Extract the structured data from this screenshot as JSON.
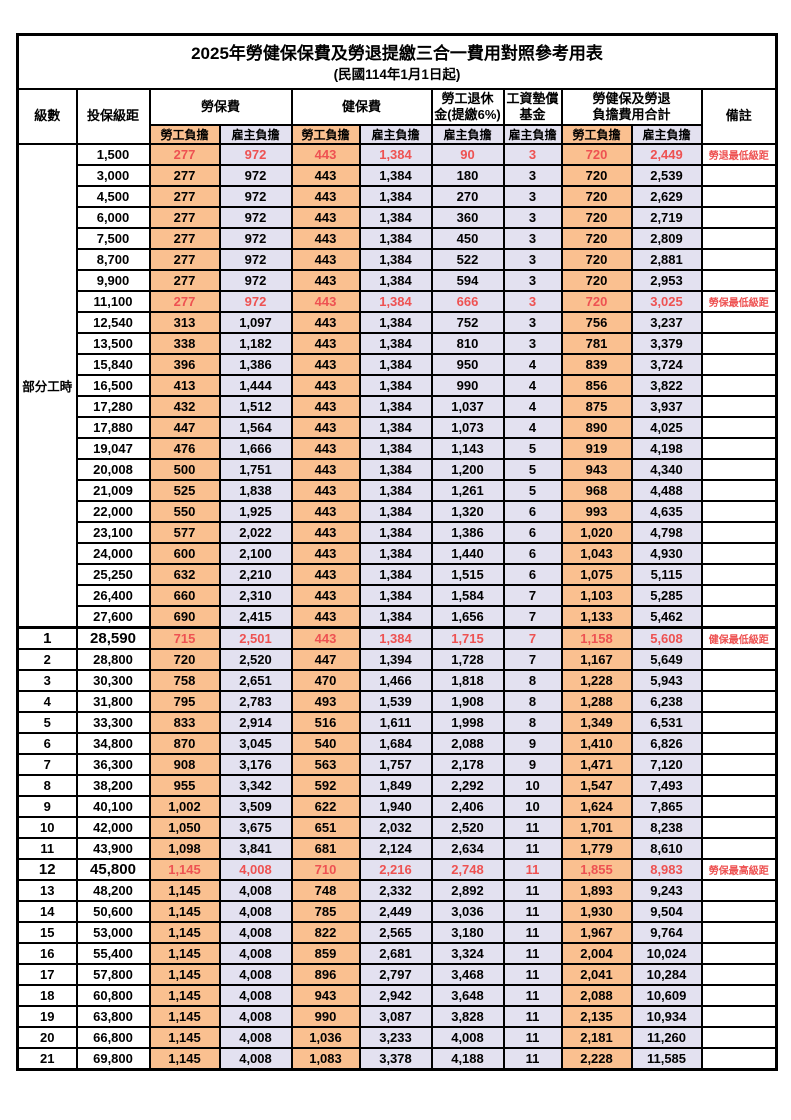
{
  "title": "2025年勞健保保費及勞退提繳三合一費用對照參考用表",
  "subtitle": "(民國114年1月1日起)",
  "header": {
    "level": "級數",
    "bracket": "投保級距",
    "labor_ins": "勞保費",
    "health_ins": "健保費",
    "pension_line1": "勞工退休",
    "pension_line2": "金(提繳6%)",
    "wage_fund_line1": "工資墊償",
    "wage_fund_line2": "基金",
    "total_line1": "勞健保及勞退",
    "total_line2": "負擔費用合計",
    "note": "備註",
    "employee": "勞工負擔",
    "employer": "雇主負擔"
  },
  "part_time_label": "部分工時",
  "part_time_row_count": 23,
  "colors": {
    "employee_bg": "#FAC090",
    "employer_bg": "#E3E1F0",
    "highlight_red": "#EE5252"
  },
  "rows": [
    {
      "br": "1,500",
      "a": "277",
      "b": "972",
      "c": "443",
      "d": "1,384",
      "e": "90",
      "f": "3",
      "g": "720",
      "h": "2,449",
      "note": "勞退最低級距",
      "hl": true
    },
    {
      "br": "3,000",
      "a": "277",
      "b": "972",
      "c": "443",
      "d": "1,384",
      "e": "180",
      "f": "3",
      "g": "720",
      "h": "2,539",
      "note": ""
    },
    {
      "br": "4,500",
      "a": "277",
      "b": "972",
      "c": "443",
      "d": "1,384",
      "e": "270",
      "f": "3",
      "g": "720",
      "h": "2,629",
      "note": ""
    },
    {
      "br": "6,000",
      "a": "277",
      "b": "972",
      "c": "443",
      "d": "1,384",
      "e": "360",
      "f": "3",
      "g": "720",
      "h": "2,719",
      "note": ""
    },
    {
      "br": "7,500",
      "a": "277",
      "b": "972",
      "c": "443",
      "d": "1,384",
      "e": "450",
      "f": "3",
      "g": "720",
      "h": "2,809",
      "note": ""
    },
    {
      "br": "8,700",
      "a": "277",
      "b": "972",
      "c": "443",
      "d": "1,384",
      "e": "522",
      "f": "3",
      "g": "720",
      "h": "2,881",
      "note": ""
    },
    {
      "br": "9,900",
      "a": "277",
      "b": "972",
      "c": "443",
      "d": "1,384",
      "e": "594",
      "f": "3",
      "g": "720",
      "h": "2,953",
      "note": ""
    },
    {
      "br": "11,100",
      "a": "277",
      "b": "972",
      "c": "443",
      "d": "1,384",
      "e": "666",
      "f": "3",
      "g": "720",
      "h": "3,025",
      "note": "勞保最低級距",
      "hl": true
    },
    {
      "br": "12,540",
      "a": "313",
      "b": "1,097",
      "c": "443",
      "d": "1,384",
      "e": "752",
      "f": "3",
      "g": "756",
      "h": "3,237",
      "note": ""
    },
    {
      "br": "13,500",
      "a": "338",
      "b": "1,182",
      "c": "443",
      "d": "1,384",
      "e": "810",
      "f": "3",
      "g": "781",
      "h": "3,379",
      "note": ""
    },
    {
      "br": "15,840",
      "a": "396",
      "b": "1,386",
      "c": "443",
      "d": "1,384",
      "e": "950",
      "f": "4",
      "g": "839",
      "h": "3,724",
      "note": ""
    },
    {
      "br": "16,500",
      "a": "413",
      "b": "1,444",
      "c": "443",
      "d": "1,384",
      "e": "990",
      "f": "4",
      "g": "856",
      "h": "3,822",
      "note": ""
    },
    {
      "br": "17,280",
      "a": "432",
      "b": "1,512",
      "c": "443",
      "d": "1,384",
      "e": "1,037",
      "f": "4",
      "g": "875",
      "h": "3,937",
      "note": ""
    },
    {
      "br": "17,880",
      "a": "447",
      "b": "1,564",
      "c": "443",
      "d": "1,384",
      "e": "1,073",
      "f": "4",
      "g": "890",
      "h": "4,025",
      "note": ""
    },
    {
      "br": "19,047",
      "a": "476",
      "b": "1,666",
      "c": "443",
      "d": "1,384",
      "e": "1,143",
      "f": "5",
      "g": "919",
      "h": "4,198",
      "note": ""
    },
    {
      "br": "20,008",
      "a": "500",
      "b": "1,751",
      "c": "443",
      "d": "1,384",
      "e": "1,200",
      "f": "5",
      "g": "943",
      "h": "4,340",
      "note": ""
    },
    {
      "br": "21,009",
      "a": "525",
      "b": "1,838",
      "c": "443",
      "d": "1,384",
      "e": "1,261",
      "f": "5",
      "g": "968",
      "h": "4,488",
      "note": ""
    },
    {
      "br": "22,000",
      "a": "550",
      "b": "1,925",
      "c": "443",
      "d": "1,384",
      "e": "1,320",
      "f": "6",
      "g": "993",
      "h": "4,635",
      "note": ""
    },
    {
      "br": "23,100",
      "a": "577",
      "b": "2,022",
      "c": "443",
      "d": "1,384",
      "e": "1,386",
      "f": "6",
      "g": "1,020",
      "h": "4,798",
      "note": ""
    },
    {
      "br": "24,000",
      "a": "600",
      "b": "2,100",
      "c": "443",
      "d": "1,384",
      "e": "1,440",
      "f": "6",
      "g": "1,043",
      "h": "4,930",
      "note": ""
    },
    {
      "br": "25,250",
      "a": "632",
      "b": "2,210",
      "c": "443",
      "d": "1,384",
      "e": "1,515",
      "f": "6",
      "g": "1,075",
      "h": "5,115",
      "note": ""
    },
    {
      "br": "26,400",
      "a": "660",
      "b": "2,310",
      "c": "443",
      "d": "1,384",
      "e": "1,584",
      "f": "7",
      "g": "1,103",
      "h": "5,285",
      "note": ""
    },
    {
      "br": "27,600",
      "a": "690",
      "b": "2,415",
      "c": "443",
      "d": "1,384",
      "e": "1,656",
      "f": "7",
      "g": "1,133",
      "h": "5,462",
      "note": ""
    },
    {
      "lv": "1",
      "br": "28,590",
      "a": "715",
      "b": "2,501",
      "c": "443",
      "d": "1,384",
      "e": "1,715",
      "f": "7",
      "g": "1,158",
      "h": "5,608",
      "note": "健保最低級距",
      "hl": true,
      "emph": true
    },
    {
      "lv": "2",
      "br": "28,800",
      "a": "720",
      "b": "2,520",
      "c": "447",
      "d": "1,394",
      "e": "1,728",
      "f": "7",
      "g": "1,167",
      "h": "5,649",
      "note": ""
    },
    {
      "lv": "3",
      "br": "30,300",
      "a": "758",
      "b": "2,651",
      "c": "470",
      "d": "1,466",
      "e": "1,818",
      "f": "8",
      "g": "1,228",
      "h": "5,943",
      "note": ""
    },
    {
      "lv": "4",
      "br": "31,800",
      "a": "795",
      "b": "2,783",
      "c": "493",
      "d": "1,539",
      "e": "1,908",
      "f": "8",
      "g": "1,288",
      "h": "6,238",
      "note": ""
    },
    {
      "lv": "5",
      "br": "33,300",
      "a": "833",
      "b": "2,914",
      "c": "516",
      "d": "1,611",
      "e": "1,998",
      "f": "8",
      "g": "1,349",
      "h": "6,531",
      "note": ""
    },
    {
      "lv": "6",
      "br": "34,800",
      "a": "870",
      "b": "3,045",
      "c": "540",
      "d": "1,684",
      "e": "2,088",
      "f": "9",
      "g": "1,410",
      "h": "6,826",
      "note": ""
    },
    {
      "lv": "7",
      "br": "36,300",
      "a": "908",
      "b": "3,176",
      "c": "563",
      "d": "1,757",
      "e": "2,178",
      "f": "9",
      "g": "1,471",
      "h": "7,120",
      "note": ""
    },
    {
      "lv": "8",
      "br": "38,200",
      "a": "955",
      "b": "3,342",
      "c": "592",
      "d": "1,849",
      "e": "2,292",
      "f": "10",
      "g": "1,547",
      "h": "7,493",
      "note": ""
    },
    {
      "lv": "9",
      "br": "40,100",
      "a": "1,002",
      "b": "3,509",
      "c": "622",
      "d": "1,940",
      "e": "2,406",
      "f": "10",
      "g": "1,624",
      "h": "7,865",
      "note": ""
    },
    {
      "lv": "10",
      "br": "42,000",
      "a": "1,050",
      "b": "3,675",
      "c": "651",
      "d": "2,032",
      "e": "2,520",
      "f": "11",
      "g": "1,701",
      "h": "8,238",
      "note": ""
    },
    {
      "lv": "11",
      "br": "43,900",
      "a": "1,098",
      "b": "3,841",
      "c": "681",
      "d": "2,124",
      "e": "2,634",
      "f": "11",
      "g": "1,779",
      "h": "8,610",
      "note": ""
    },
    {
      "lv": "12",
      "br": "45,800",
      "a": "1,145",
      "b": "4,008",
      "c": "710",
      "d": "2,216",
      "e": "2,748",
      "f": "11",
      "g": "1,855",
      "h": "8,983",
      "note": "勞保最高級距",
      "hl": true,
      "emph": true
    },
    {
      "lv": "13",
      "br": "48,200",
      "a": "1,145",
      "b": "4,008",
      "c": "748",
      "d": "2,332",
      "e": "2,892",
      "f": "11",
      "g": "1,893",
      "h": "9,243",
      "note": ""
    },
    {
      "lv": "14",
      "br": "50,600",
      "a": "1,145",
      "b": "4,008",
      "c": "785",
      "d": "2,449",
      "e": "3,036",
      "f": "11",
      "g": "1,930",
      "h": "9,504",
      "note": ""
    },
    {
      "lv": "15",
      "br": "53,000",
      "a": "1,145",
      "b": "4,008",
      "c": "822",
      "d": "2,565",
      "e": "3,180",
      "f": "11",
      "g": "1,967",
      "h": "9,764",
      "note": ""
    },
    {
      "lv": "16",
      "br": "55,400",
      "a": "1,145",
      "b": "4,008",
      "c": "859",
      "d": "2,681",
      "e": "3,324",
      "f": "11",
      "g": "2,004",
      "h": "10,024",
      "note": ""
    },
    {
      "lv": "17",
      "br": "57,800",
      "a": "1,145",
      "b": "4,008",
      "c": "896",
      "d": "2,797",
      "e": "3,468",
      "f": "11",
      "g": "2,041",
      "h": "10,284",
      "note": ""
    },
    {
      "lv": "18",
      "br": "60,800",
      "a": "1,145",
      "b": "4,008",
      "c": "943",
      "d": "2,942",
      "e": "3,648",
      "f": "11",
      "g": "2,088",
      "h": "10,609",
      "note": ""
    },
    {
      "lv": "19",
      "br": "63,800",
      "a": "1,145",
      "b": "4,008",
      "c": "990",
      "d": "3,087",
      "e": "3,828",
      "f": "11",
      "g": "2,135",
      "h": "10,934",
      "note": ""
    },
    {
      "lv": "20",
      "br": "66,800",
      "a": "1,145",
      "b": "4,008",
      "c": "1,036",
      "d": "3,233",
      "e": "4,008",
      "f": "11",
      "g": "2,181",
      "h": "11,260",
      "note": ""
    },
    {
      "lv": "21",
      "br": "69,800",
      "a": "1,145",
      "b": "4,008",
      "c": "1,083",
      "d": "3,378",
      "e": "4,188",
      "f": "11",
      "g": "2,228",
      "h": "11,585",
      "note": ""
    }
  ]
}
